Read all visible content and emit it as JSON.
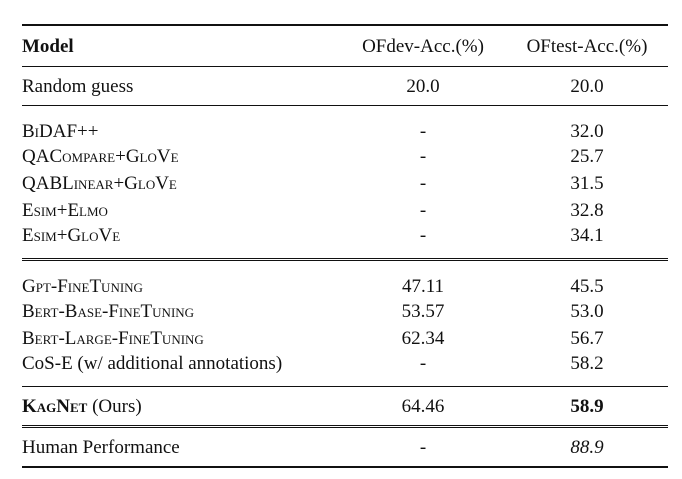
{
  "table": {
    "columns": [
      "Model",
      "OFdev-Acc.(%)",
      "OFtest-Acc.(%)"
    ],
    "groups": [
      {
        "rows": [
          {
            "model": "Random guess",
            "dev": "20.0",
            "test": "20.0"
          }
        ]
      },
      {
        "rows": [
          {
            "model": "BiDAF++",
            "dev": "-",
            "test": "32.0"
          },
          {
            "model": "QACompare+GloVe",
            "dev": "-",
            "test": "25.7"
          },
          {
            "model": "QABLinear+GloVe",
            "dev": "-",
            "test": "31.5"
          },
          {
            "model": "Esim+Elmo",
            "dev": "-",
            "test": "32.8"
          },
          {
            "model": "Esim+GloVe",
            "dev": "-",
            "test": "34.1"
          }
        ]
      },
      {
        "rows": [
          {
            "model": "Gpt-FineTuning",
            "dev": "47.11",
            "test": "45.5"
          },
          {
            "model": "Bert-Base-FineTuning",
            "dev": "53.57",
            "test": "53.0"
          },
          {
            "model": "Bert-Large-FineTuning",
            "dev": "62.34",
            "test": "56.7"
          },
          {
            "model": "CoS-E (w/ additional annotations)",
            "dev": "-",
            "test": "58.2"
          }
        ]
      },
      {
        "rows": [
          {
            "model_name": "KagNet",
            "model_suffix": " (Ours)",
            "dev": "64.46",
            "test": "58.9"
          }
        ]
      },
      {
        "rows": [
          {
            "model": "Human Performance",
            "dev": "-",
            "test": "88.9"
          }
        ]
      }
    ]
  }
}
